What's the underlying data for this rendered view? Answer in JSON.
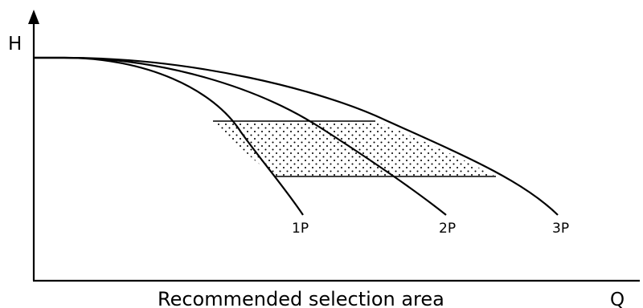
{
  "diagram": {
    "y_axis_label": "H",
    "x_axis_label": "Q",
    "caption": "Recommended selection area",
    "curves": [
      {
        "label": "1P"
      },
      {
        "label": "2P"
      },
      {
        "label": "3P"
      }
    ]
  }
}
